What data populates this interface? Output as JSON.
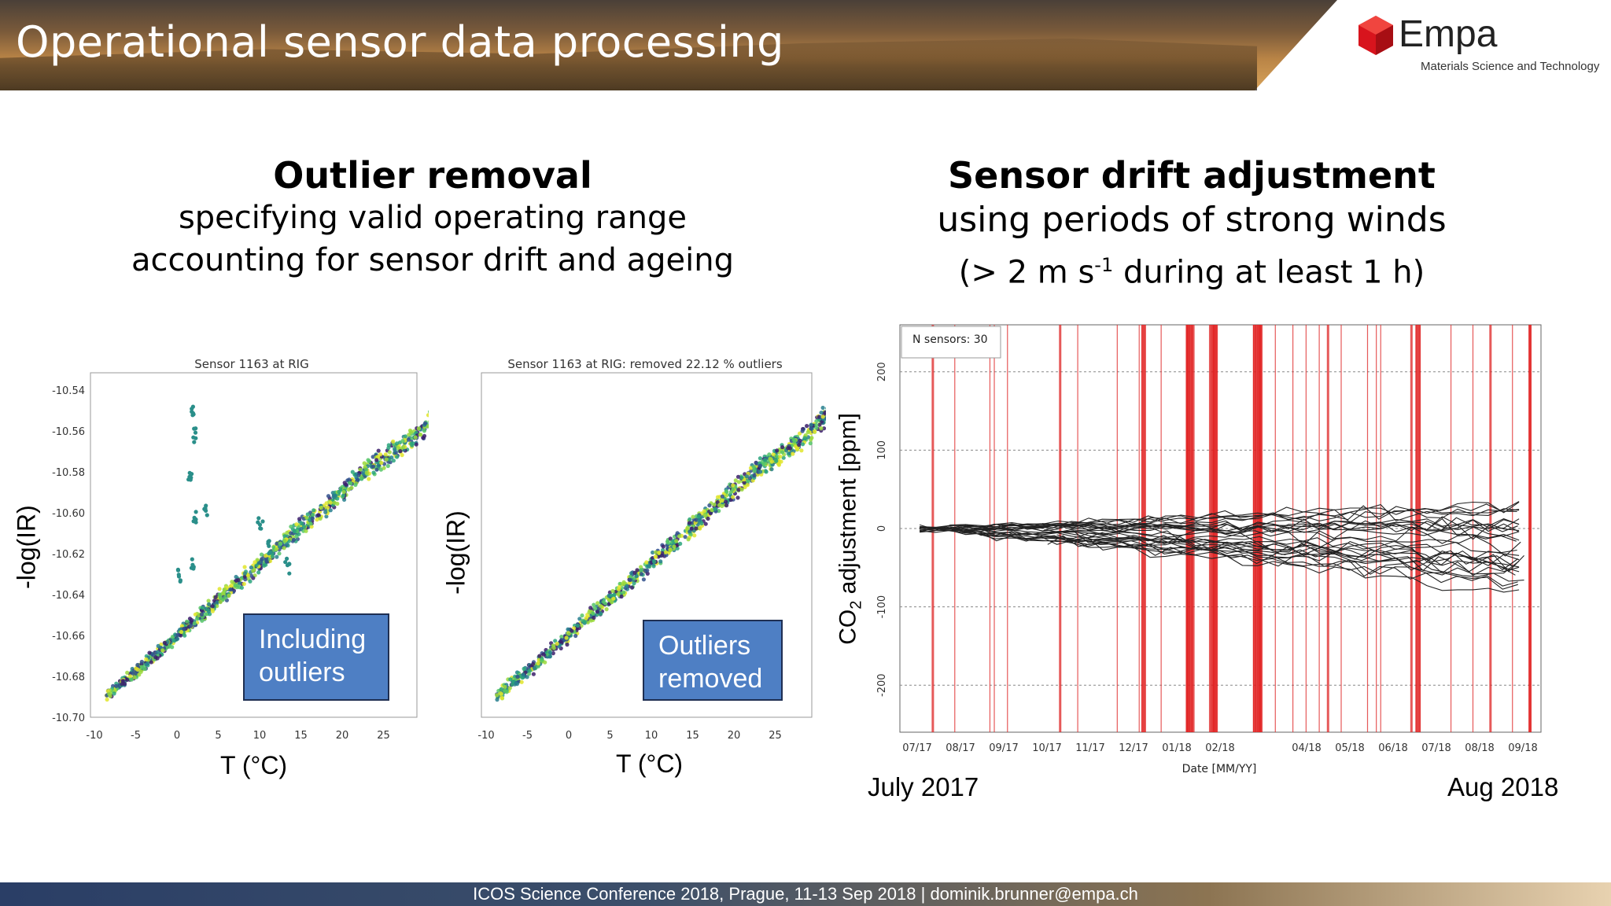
{
  "header": {
    "title": "Operational sensor data processing",
    "logo_name": "Empa",
    "logo_subtitle": "Materials Science and Technology"
  },
  "left_section": {
    "title": "Outlier removal",
    "line1": "specifying valid operating range",
    "line2": "accounting for sensor drift and ageing"
  },
  "right_section": {
    "title": "Sensor drift adjustment",
    "line1": "using periods of strong winds",
    "line2_pre": "(> 2 m s",
    "line2_sup": "-1",
    "line2_post": " during at least 1 h)"
  },
  "charts": {
    "c1": {
      "title": "Sensor 1163 at RIG",
      "ylabel": "-log(IR)",
      "xlabel": "T (°C)",
      "callout": "Including outliers",
      "yticks": [
        "-10.54",
        "-10.56",
        "-10.58",
        "-10.60",
        "-10.62",
        "-10.64",
        "-10.66",
        "-10.68",
        "-10.70"
      ],
      "xticks": [
        "-10",
        "-5",
        "0",
        "5",
        "10",
        "15",
        "20",
        "25"
      ]
    },
    "c2": {
      "title": "Sensor 1163 at RIG: removed 22.12 % outliers",
      "ylabel": "-log(IR)",
      "xlabel": "T (°C)",
      "callout": "Outliers removed",
      "xticks": [
        "-10",
        "-5",
        "0",
        "5",
        "10",
        "15",
        "20",
        "25"
      ]
    },
    "c3": {
      "legend": "N sensors: 30",
      "ylabel_pre": "CO",
      "ylabel_sub": "2",
      "ylabel_post": " adjustment [ppm]",
      "xlabel": "Date [MM/YY]",
      "yticks": [
        "200",
        "100",
        "0",
        "-100",
        "-200"
      ],
      "xticks": [
        "07/17",
        "08/17",
        "09/17",
        "10/17",
        "11/17",
        "12/17",
        "01/18",
        "02/18",
        "04/18",
        "05/18",
        "06/18",
        "07/18",
        "08/18",
        "09/18"
      ],
      "date_start": "July 2017",
      "date_end": "Aug 2018"
    }
  },
  "chart_data": [
    {
      "type": "scatter",
      "title": "Sensor 1163 at RIG",
      "ylabel": "-log(IR)",
      "xlabel": "T (°C)",
      "xlim": [
        -10,
        28
      ],
      "ylim": [
        -10.7,
        -10.53
      ],
      "trend": [
        [
          -9,
          -10.69
        ],
        [
          -5,
          -10.675
        ],
        [
          0,
          -10.655
        ],
        [
          5,
          -10.635
        ],
        [
          10,
          -10.615
        ],
        [
          15,
          -10.595
        ],
        [
          20,
          -10.575
        ],
        [
          25,
          -10.56
        ],
        [
          28,
          -10.545
        ]
      ],
      "outliers": [
        [
          0.5,
          -10.545
        ],
        [
          0.7,
          -10.56
        ],
        [
          0.3,
          -10.58
        ],
        [
          0.8,
          -10.6
        ],
        [
          0.6,
          -10.625
        ],
        [
          -1,
          -10.63
        ],
        [
          2,
          -10.595
        ],
        [
          8,
          -10.605
        ],
        [
          9,
          -10.615
        ],
        [
          11,
          -10.625
        ]
      ]
    },
    {
      "type": "scatter",
      "title": "Sensor 1163 at RIG: removed 22.12 % outliers",
      "ylabel": "-log(IR)",
      "xlabel": "T (°C)",
      "xlim": [
        -10,
        28
      ],
      "ylim": [
        -10.7,
        -10.53
      ],
      "trend": [
        [
          -9,
          -10.69
        ],
        [
          -5,
          -10.675
        ],
        [
          0,
          -10.655
        ],
        [
          5,
          -10.635
        ],
        [
          10,
          -10.615
        ],
        [
          15,
          -10.595
        ],
        [
          20,
          -10.575
        ],
        [
          25,
          -10.56
        ],
        [
          28,
          -10.545
        ]
      ]
    },
    {
      "type": "line",
      "ylabel": "CO2 adjustment [ppm]",
      "xlabel": "Date [MM/YY]",
      "legend": "N sensors: 30",
      "ylim": [
        -260,
        260
      ],
      "xlim": [
        0,
        14.6
      ],
      "categories": [
        "07/17",
        "08/17",
        "09/17",
        "10/17",
        "11/17",
        "12/17",
        "01/18",
        "02/18",
        "04/18",
        "05/18",
        "06/18",
        "07/18",
        "08/18",
        "09/18"
      ],
      "wind_periods_month_index": [
        0.3,
        0.8,
        1.6,
        1.7,
        2.0,
        3.2,
        3.6,
        4.5,
        5.0,
        5.5,
        6.1,
        6.15,
        6.2,
        6.25,
        6.6,
        6.7,
        6.75,
        7.6,
        7.65,
        7.7,
        7.75,
        8.1,
        8.5,
        8.8,
        9.1,
        9.3,
        9.6,
        10.2,
        10.4,
        10.5,
        11.2,
        11.3,
        11.4,
        12.1,
        12.6,
        13.0,
        13.5,
        13.9
      ],
      "series_envelope_ppm": {
        "start": 0,
        "end_min": -80,
        "end_max": 30
      }
    }
  ]
}
